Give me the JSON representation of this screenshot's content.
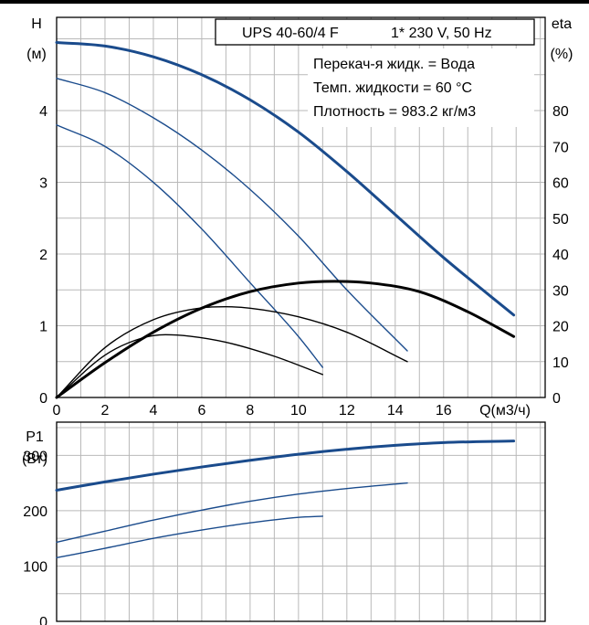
{
  "chart_data": [
    {
      "type": "line",
      "id": "head-efficiency",
      "title": "UPS 40-60/4 F",
      "subtitle": "1* 230 V, 50 Hz",
      "info_lines": [
        "Перекач-я жидк. = Вода",
        "Темп. жидкости = 60 °C",
        "Плотность = 983.2 кг/м3"
      ],
      "xlabel": "Q(м3/ч)",
      "ylabel_line1": "H",
      "ylabel_line2": "(м)",
      "y2label_line1": "eta",
      "y2label_line2": "(%)",
      "xlim": [
        0,
        20.2
      ],
      "ylim": [
        0,
        5.3
      ],
      "y2lim": [
        0,
        106
      ],
      "x_ticks": [
        0,
        2,
        4,
        6,
        8,
        10,
        12,
        14,
        16
      ],
      "y_ticks": [
        0,
        1,
        2,
        3,
        4
      ],
      "y2_ticks": [
        0,
        10,
        20,
        30,
        40,
        50,
        60,
        70,
        80
      ],
      "grid": true,
      "series": [
        {
          "axis": "left",
          "color": "#1a4b8c",
          "weight": "thick",
          "x": [
            0,
            2,
            4,
            6,
            8,
            10,
            12,
            14,
            16,
            18.9
          ],
          "values": [
            4.95,
            4.9,
            4.75,
            4.5,
            4.15,
            3.7,
            3.15,
            2.55,
            1.95,
            1.15
          ]
        },
        {
          "axis": "left",
          "color": "#1a4b8c",
          "weight": "thin",
          "x": [
            0,
            2,
            4,
            6,
            8,
            10,
            12,
            14.5
          ],
          "values": [
            4.45,
            4.25,
            3.9,
            3.45,
            2.9,
            2.25,
            1.5,
            0.65
          ]
        },
        {
          "axis": "left",
          "color": "#1a4b8c",
          "weight": "thin",
          "x": [
            0,
            2,
            4,
            6,
            8,
            10,
            11
          ],
          "values": [
            3.8,
            3.5,
            3.0,
            2.35,
            1.6,
            0.85,
            0.42
          ]
        },
        {
          "axis": "right",
          "color": "#000000",
          "weight": "thick",
          "x": [
            0,
            2,
            4,
            6,
            8,
            10,
            11.5,
            13,
            15,
            17,
            18.9
          ],
          "values": [
            0,
            9.7,
            18.2,
            24.9,
            29.5,
            31.9,
            32.4,
            31.9,
            29.5,
            23.9,
            17
          ]
        },
        {
          "axis": "right",
          "color": "#000000",
          "weight": "thin",
          "x": [
            0,
            2,
            4,
            6,
            7,
            8,
            10,
            12,
            14.5
          ],
          "values": [
            0,
            13.9,
            21.7,
            25,
            25.3,
            24.9,
            22.5,
            18.2,
            10
          ]
        },
        {
          "axis": "right",
          "color": "#000000",
          "weight": "thin",
          "x": [
            0,
            2,
            3.5,
            4.5,
            5.5,
            7,
            9,
            11
          ],
          "values": [
            0,
            11.8,
            16.5,
            17.5,
            17.1,
            15.4,
            11.5,
            6.4
          ]
        }
      ]
    },
    {
      "type": "line",
      "id": "power",
      "ylabel_line1": "P1",
      "ylabel_line2": "(Вт)",
      "xlim": [
        0,
        20.2
      ],
      "ylim": [
        0,
        360
      ],
      "y_ticks": [
        0,
        100,
        200,
        300
      ],
      "grid": true,
      "series": [
        {
          "color": "#1a4b8c",
          "weight": "thick",
          "x": [
            0,
            2,
            4,
            6,
            8,
            10,
            12,
            14,
            16,
            18.9
          ],
          "values": [
            237,
            252,
            266,
            279,
            291,
            302,
            311,
            318,
            323,
            326
          ]
        },
        {
          "color": "#1a4b8c",
          "weight": "thin",
          "x": [
            0,
            2,
            4,
            6,
            8,
            10,
            12,
            14.5
          ],
          "values": [
            143,
            163,
            183,
            201,
            217,
            230,
            240,
            250
          ]
        },
        {
          "color": "#1a4b8c",
          "weight": "thin",
          "x": [
            0,
            2,
            4,
            6,
            8,
            10,
            11
          ],
          "values": [
            115,
            132,
            150,
            165,
            178,
            188,
            190
          ]
        }
      ]
    }
  ]
}
